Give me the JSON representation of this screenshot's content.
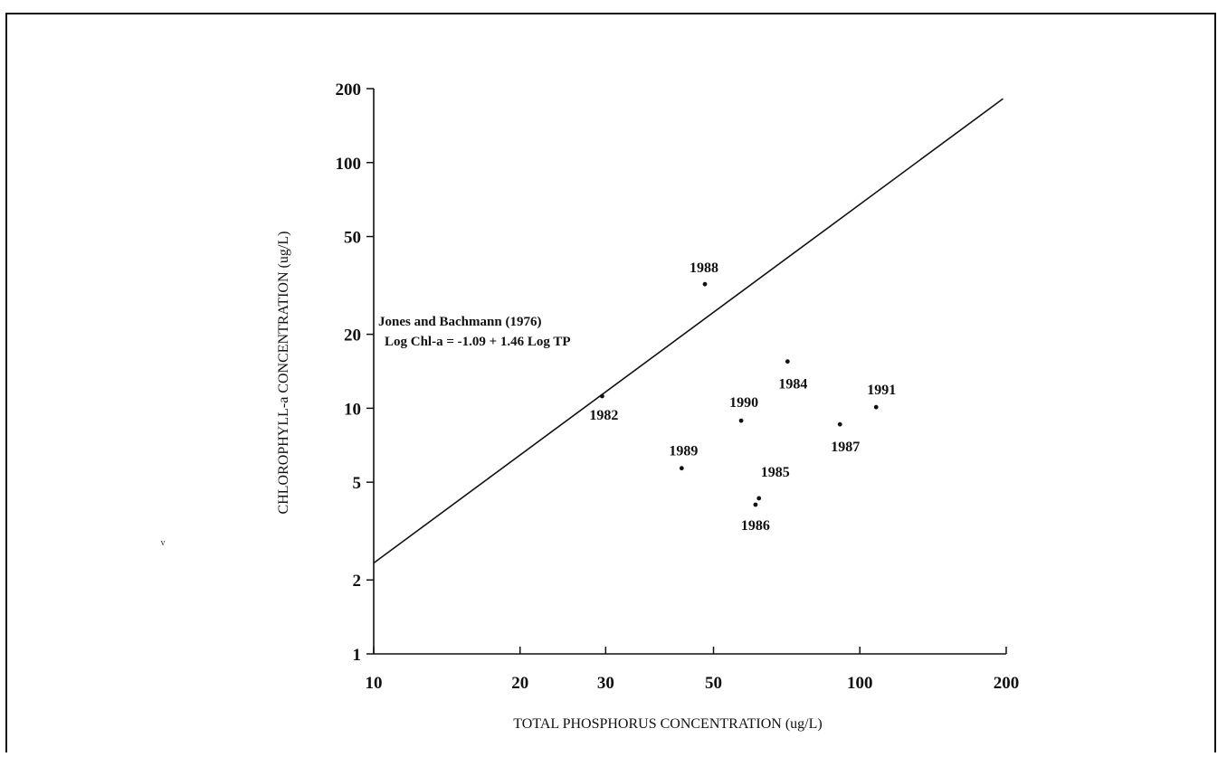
{
  "chart_data": {
    "type": "scatter",
    "x_scale": "log",
    "y_scale": "log",
    "xlim": [
      10,
      200
    ],
    "ylim": [
      1,
      200
    ],
    "xticks": [
      10,
      20,
      30,
      50,
      100,
      200
    ],
    "yticks": [
      1,
      2,
      5,
      10,
      20,
      50,
      100,
      200
    ],
    "xlabel": "TOTAL PHOSPHORUS CONCENTRATION (ug/L)",
    "ylabel": "CHLOROPHYLL-a CONCENTRATION (ug/L)",
    "grid": false,
    "points": [
      {
        "label": "1982",
        "x": 29.5,
        "y": 11.2
      },
      {
        "label": "1984",
        "x": 71,
        "y": 15.5
      },
      {
        "label": "1985",
        "x": 62,
        "y": 4.3
      },
      {
        "label": "1986",
        "x": 61,
        "y": 4.05
      },
      {
        "label": "1987",
        "x": 91,
        "y": 8.6
      },
      {
        "label": "1988",
        "x": 48,
        "y": 32
      },
      {
        "label": "1989",
        "x": 43,
        "y": 5.7
      },
      {
        "label": "1990",
        "x": 57,
        "y": 8.9
      },
      {
        "label": "1991",
        "x": 108,
        "y": 10.1
      }
    ],
    "regression_line": {
      "intercept": -1.09,
      "slope": 1.46,
      "title": "Jones and Bachmann (1976)",
      "equation": "Log Chl-a = -1.09 + 1.46 Log TP"
    }
  },
  "stray_mark": "v"
}
